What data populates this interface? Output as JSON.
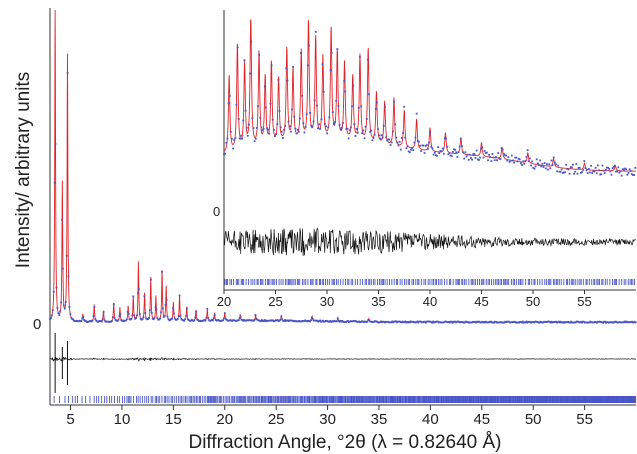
{
  "chart_data": {
    "type": "line",
    "title": "",
    "xlabel": "Diffraction Angle, °2θ (λ = 0.82640 Å)",
    "ylabel": "Intensity/ arbitrary units",
    "xlim": [
      3,
      60
    ],
    "x_ticks": [
      5,
      10,
      15,
      20,
      25,
      30,
      35,
      40,
      45,
      50,
      55
    ],
    "y_tick_labels": [
      "0"
    ],
    "grid": false,
    "legend": "none",
    "colors": {
      "observed": "#4a56c8",
      "calculated": "#e0242a",
      "difference": "#111111",
      "reflections": "#4a56c8",
      "axis": "#333333"
    },
    "series": [
      {
        "role": "observed",
        "peaks": [
          {
            "x": 3.5,
            "y": 100
          },
          {
            "x": 4.2,
            "y": 44
          },
          {
            "x": 4.7,
            "y": 85
          },
          {
            "x": 6.2,
            "y": 2.5
          },
          {
            "x": 7.3,
            "y": 5.5
          },
          {
            "x": 8.2,
            "y": 3.5
          },
          {
            "x": 9.2,
            "y": 6
          },
          {
            "x": 9.8,
            "y": 4.5
          },
          {
            "x": 10.6,
            "y": 5
          },
          {
            "x": 11.1,
            "y": 8
          },
          {
            "x": 11.6,
            "y": 19
          },
          {
            "x": 12.2,
            "y": 9
          },
          {
            "x": 12.8,
            "y": 14
          },
          {
            "x": 13.3,
            "y": 8
          },
          {
            "x": 13.9,
            "y": 16
          },
          {
            "x": 14.3,
            "y": 11
          },
          {
            "x": 15.0,
            "y": 6
          },
          {
            "x": 15.6,
            "y": 8
          },
          {
            "x": 16.3,
            "y": 4.5
          },
          {
            "x": 17.2,
            "y": 3.5
          },
          {
            "x": 18.3,
            "y": 3.5
          },
          {
            "x": 19.0,
            "y": 2.5
          },
          {
            "x": 20.0,
            "y": 2.5
          },
          {
            "x": 21.5,
            "y": 2
          },
          {
            "x": 23.0,
            "y": 2
          },
          {
            "x": 25.5,
            "y": 1.5
          },
          {
            "x": 28.5,
            "y": 1.5
          },
          {
            "x": 31.0,
            "y": 1.2
          },
          {
            "x": 34.0,
            "y": 1.0
          }
        ]
      },
      {
        "role": "calculated"
      },
      {
        "role": "difference"
      },
      {
        "role": "reflections"
      }
    ],
    "inset": {
      "xlim": [
        20,
        60
      ],
      "x_ticks": [
        20,
        25,
        30,
        35,
        40,
        45,
        50,
        55
      ],
      "y_tick_labels": [
        "0"
      ],
      "peaks": [
        {
          "x": 20.5,
          "y": 45
        },
        {
          "x": 21.3,
          "y": 62
        },
        {
          "x": 22.0,
          "y": 50
        },
        {
          "x": 22.6,
          "y": 78
        },
        {
          "x": 23.4,
          "y": 55
        },
        {
          "x": 24.0,
          "y": 40
        },
        {
          "x": 24.6,
          "y": 48
        },
        {
          "x": 25.3,
          "y": 38
        },
        {
          "x": 26.1,
          "y": 55
        },
        {
          "x": 26.7,
          "y": 42
        },
        {
          "x": 27.5,
          "y": 52
        },
        {
          "x": 28.2,
          "y": 70
        },
        {
          "x": 28.9,
          "y": 60
        },
        {
          "x": 29.6,
          "y": 48
        },
        {
          "x": 30.4,
          "y": 65
        },
        {
          "x": 31.0,
          "y": 52
        },
        {
          "x": 31.7,
          "y": 45
        },
        {
          "x": 32.5,
          "y": 38
        },
        {
          "x": 33.2,
          "y": 50
        },
        {
          "x": 34.0,
          "y": 55
        },
        {
          "x": 34.8,
          "y": 30
        },
        {
          "x": 35.6,
          "y": 25
        },
        {
          "x": 36.5,
          "y": 28
        },
        {
          "x": 37.5,
          "y": 22
        },
        {
          "x": 38.7,
          "y": 18
        },
        {
          "x": 40.0,
          "y": 14
        },
        {
          "x": 41.5,
          "y": 12
        },
        {
          "x": 43.0,
          "y": 10
        },
        {
          "x": 45.0,
          "y": 8
        },
        {
          "x": 47.0,
          "y": 7
        },
        {
          "x": 49.5,
          "y": 6
        },
        {
          "x": 52.0,
          "y": 5
        },
        {
          "x": 55.0,
          "y": 4
        },
        {
          "x": 58.0,
          "y": 3
        }
      ]
    }
  }
}
